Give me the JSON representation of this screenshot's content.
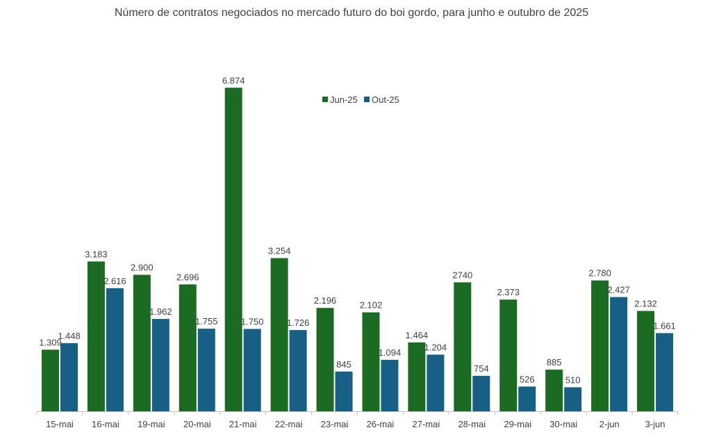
{
  "chart_data": {
    "type": "bar",
    "title": "Número de contratos negociados no mercado futuro do boi gordo, para junho e outubro de 2025",
    "xlabel": "",
    "ylabel": "",
    "ylim": [
      0,
      7000
    ],
    "grid": false,
    "legend_position": "top-center",
    "categories": [
      "15-mai",
      "16-mai",
      "19-mai",
      "20-mai",
      "21-mai",
      "22-mai",
      "23-mai",
      "26-mai",
      "27-mai",
      "28-mai",
      "29-mai",
      "30-mai",
      "2-jun",
      "3-jun"
    ],
    "series": [
      {
        "name": "Jun-25",
        "color": "#1b6b23",
        "values": [
          1309,
          3183,
          2900,
          2696,
          6874,
          3254,
          2196,
          2102,
          1464,
          2740,
          2373,
          885,
          2780,
          2132
        ],
        "labels": [
          "1.309",
          "3.183",
          "2.900",
          "2.696",
          "6.874",
          "3.254",
          "2.196",
          "2.102",
          "1.464",
          "2740",
          "2.373",
          "885",
          "2.780",
          "2.132"
        ]
      },
      {
        "name": "Out-25",
        "color": "#175f85",
        "values": [
          1448,
          2616,
          1962,
          1755,
          1750,
          1726,
          845,
          1094,
          1204,
          754,
          526,
          510,
          2427,
          1661
        ],
        "labels": [
          "1.448",
          "2.616",
          "1.962",
          "1.755",
          "1.750",
          "1.726",
          "845",
          "1.094",
          "1.204",
          "754",
          "526",
          "510",
          "2.427",
          "1.661"
        ]
      }
    ]
  }
}
